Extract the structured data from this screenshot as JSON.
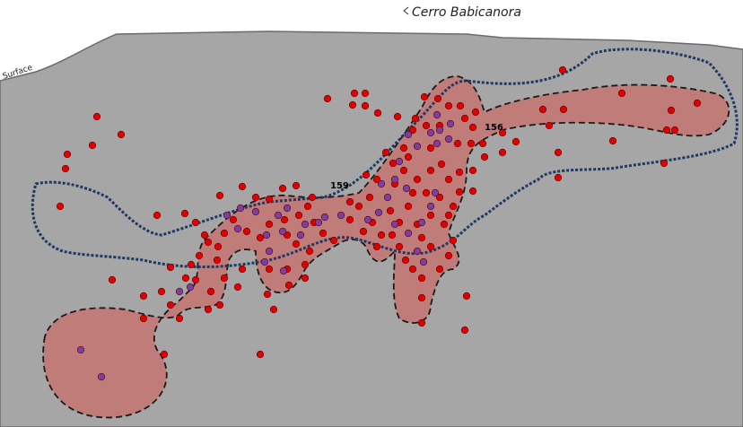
{
  "header": {
    "title": "Cerro Babicanora"
  },
  "labels": {
    "surface": "Surface",
    "hole_159": "159",
    "hole_156": "156"
  }
}
